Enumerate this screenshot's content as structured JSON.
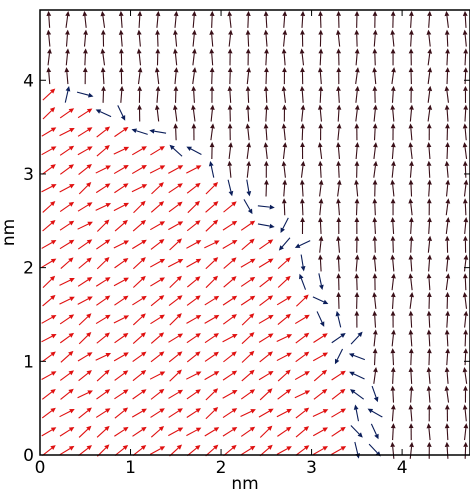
{
  "chart_data": {
    "type": "quiver",
    "title": "",
    "xlabel": "nm",
    "ylabel": "nm",
    "xlim": [
      0,
      4.75
    ],
    "ylim": [
      0,
      4.75
    ],
    "xticks": [
      "0",
      "1",
      "2",
      "3",
      "4"
    ],
    "yticks": [
      "0",
      "1",
      "2",
      "3",
      "4"
    ],
    "grid_spacing": 0.2,
    "colors": {
      "domain_red": "#e01010",
      "domain_dark": "#3a0f18",
      "domain_wall": "#0b1e5a"
    },
    "domains": [
      {
        "color_key": "domain_red",
        "region": "below-left of wall",
        "direction": "up-right, about 25-35 degrees"
      },
      {
        "color_key": "domain_dark",
        "region": "above-right of wall",
        "direction": "up, about 85-95 degrees"
      },
      {
        "color_key": "domain_wall",
        "region": "along wall",
        "direction": "disordered"
      }
    ],
    "wall_boundary": {
      "y": [
        0.0,
        0.3,
        0.6,
        0.9,
        1.2,
        1.5,
        1.8,
        2.1,
        2.4,
        2.7,
        3.0,
        3.3,
        3.6,
        3.9
      ],
      "x": [
        3.55,
        3.65,
        3.6,
        3.5,
        3.4,
        3.2,
        3.0,
        2.85,
        2.7,
        2.4,
        2.0,
        1.55,
        0.9,
        0.25
      ]
    }
  }
}
